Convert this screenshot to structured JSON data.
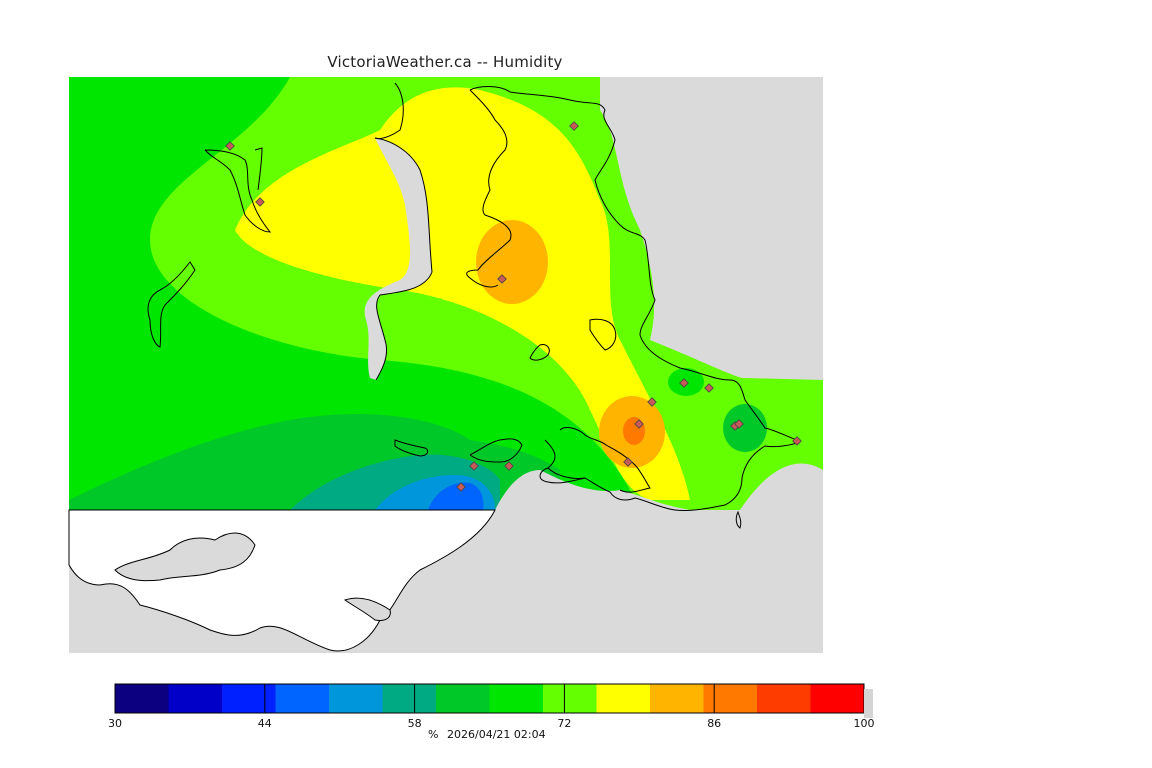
{
  "header": {
    "title": "VictoriaWeather.ca -- Humidity"
  },
  "map": {
    "land_color": "#dadada",
    "outside_color": "#ffffff",
    "coast_color": "#000000",
    "station_marker_color": "#c85a5a",
    "station_count": 15
  },
  "legend": {
    "unit": "%",
    "timestamp": "2026/04/21 02:04",
    "min": 30,
    "max": 100,
    "tick_labels": [
      "30",
      "44",
      "58",
      "72",
      "86",
      "100"
    ],
    "colors": [
      "#0d0080",
      "#0000c8",
      "#0020ff",
      "#0064ff",
      "#0096dc",
      "#00aa82",
      "#00c828",
      "#00e600",
      "#64ff00",
      "#ffff00",
      "#ffb400",
      "#ff7800",
      "#ff3c00",
      "#ff0000"
    ]
  }
}
